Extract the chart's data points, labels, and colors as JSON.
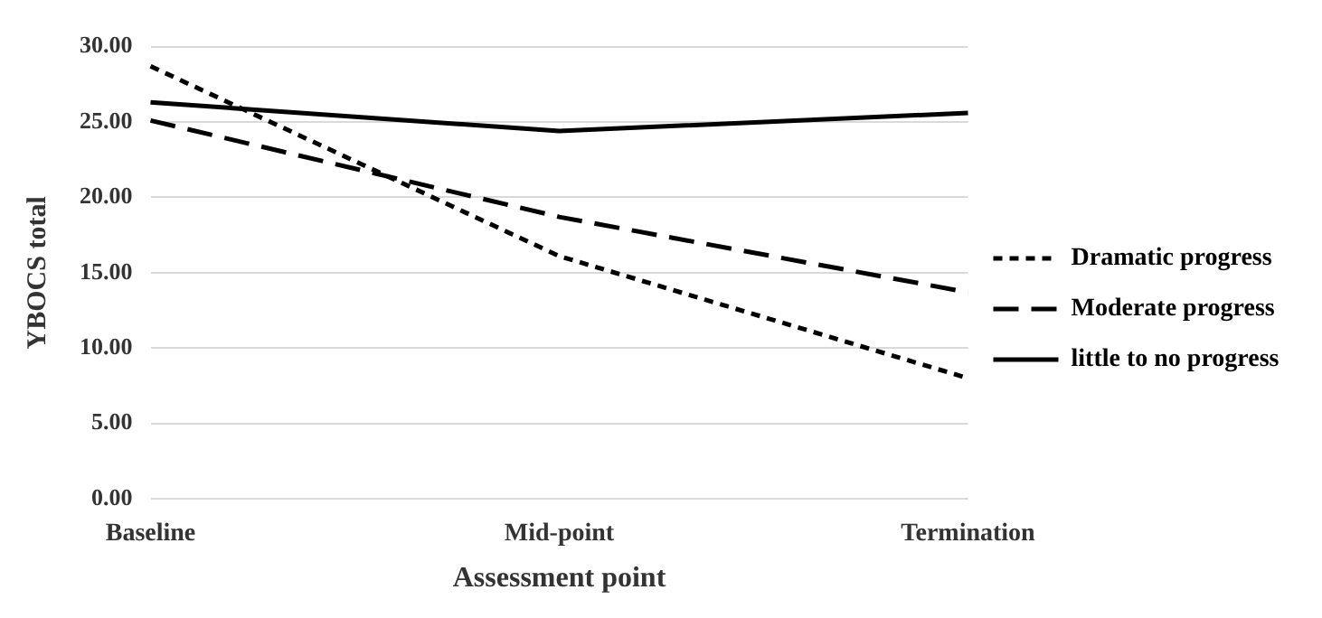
{
  "chart_data": {
    "type": "line",
    "xlabel": "Assessment point",
    "ylabel": "YBOCS total",
    "categories": [
      "Baseline",
      "Mid-point",
      "Termination"
    ],
    "series": [
      {
        "name": "Dramatic progress",
        "color": "#000000",
        "line_style": "dotted",
        "values": [
          28.7,
          16.1,
          8.0
        ]
      },
      {
        "name": "Moderate progress",
        "color": "#000000",
        "line_style": "dashed",
        "values": [
          25.1,
          18.7,
          13.7
        ]
      },
      {
        "name": "little to no progress",
        "color": "#000000",
        "line_style": "solid",
        "values": [
          26.3,
          24.4,
          25.6
        ]
      }
    ],
    "ylim": [
      0,
      30
    ],
    "yticks": [
      {
        "value": 0,
        "label": "0.00"
      },
      {
        "value": 5,
        "label": "5.00"
      },
      {
        "value": 10,
        "label": "10.00"
      },
      {
        "value": 15,
        "label": "15.00"
      },
      {
        "value": 20,
        "label": "20.00"
      },
      {
        "value": 25,
        "label": "25.00"
      },
      {
        "value": 30,
        "label": "30.00"
      }
    ],
    "grid": "y",
    "legend": "right",
    "marker": "none"
  }
}
